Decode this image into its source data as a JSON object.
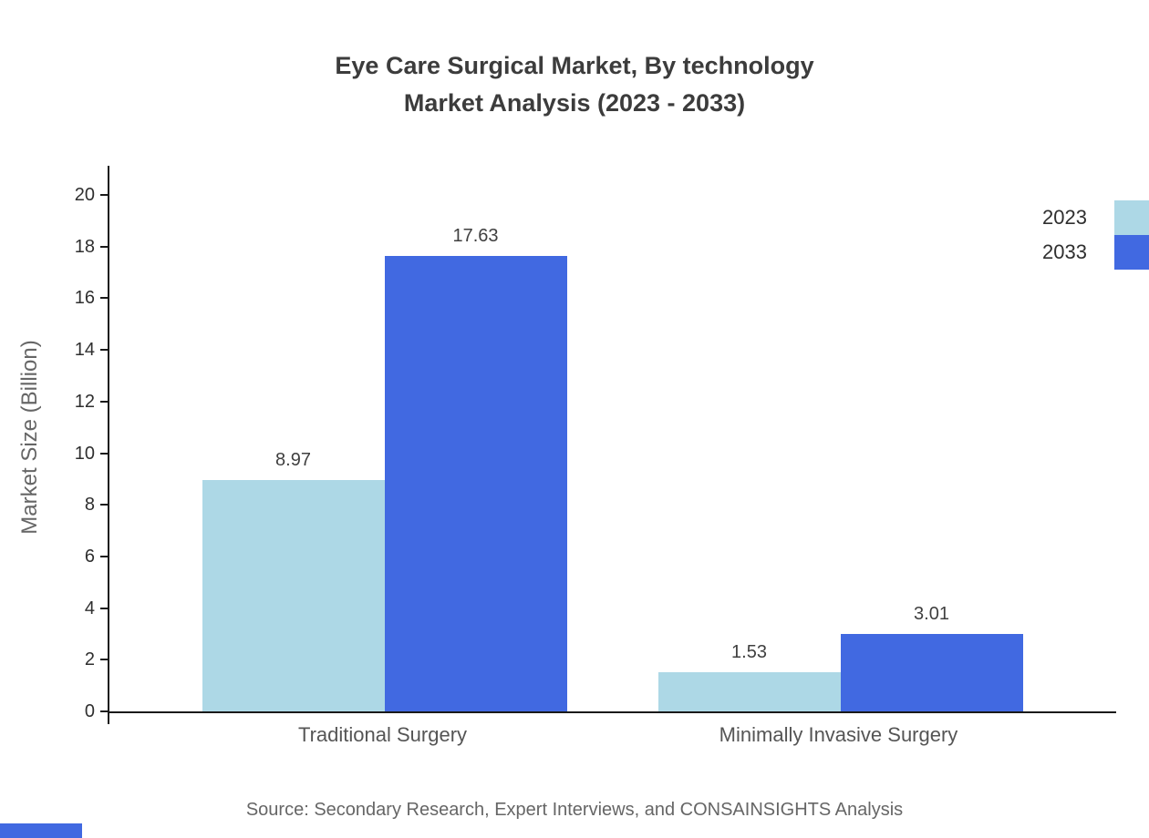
{
  "chart_data": {
    "type": "bar",
    "title": "Eye Care Surgical Market, By technology Market Analysis (2023 - 2033)",
    "title_lines": [
      "Eye Care Surgical Market, By technology",
      "Market Analysis (2023 - 2033)"
    ],
    "categories": [
      "Traditional Surgery",
      "Minimally Invasive Surgery"
    ],
    "series": [
      {
        "name": "2023",
        "color": "#ADD8E6",
        "values": [
          8.97,
          1.53
        ]
      },
      {
        "name": "2033",
        "color": "#4169E1",
        "values": [
          17.63,
          3.01
        ]
      }
    ],
    "xlabel": "",
    "ylabel": "Market Size (Billion)",
    "ylim": [
      0,
      20
    ],
    "ytick_step": 2,
    "grid": false,
    "legend_position": "top-right",
    "value_labels": true,
    "source_note": "Source: Secondary Research, Expert Interviews, and CONSAINSIGHTS Analysis"
  },
  "colors": {
    "axis": "#1a1a1a",
    "title_text": "#3c3c3c",
    "tick_text": "#2f2f2f",
    "category_text": "#555555",
    "value_text": "#3f3f3f",
    "source_text": "#666666",
    "series_2023": "#ADD8E6",
    "series_2033": "#4169E1"
  }
}
